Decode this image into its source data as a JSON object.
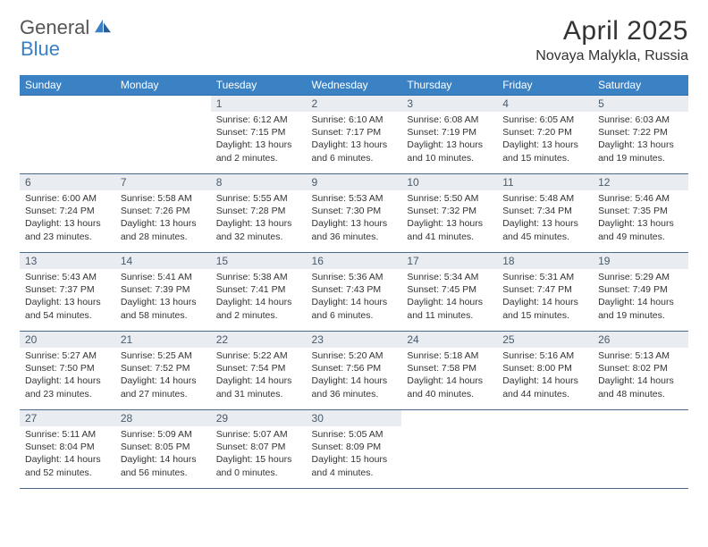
{
  "brand": {
    "general": "General",
    "blue": "Blue"
  },
  "header": {
    "month": "April 2025",
    "location": "Novaya Malykla, Russia"
  },
  "style": {
    "header_bg": "#3b82c4",
    "header_text": "#ffffff",
    "daynum_bg": "#e9edf1",
    "daynum_text": "#4a5a6a",
    "row_border": "#4a6a8a",
    "body_text": "#333333",
    "logo_blue": "#3b7fc4",
    "title_fontsize_pt": 22,
    "location_fontsize_pt": 12,
    "dayheader_fontsize_pt": 9,
    "cell_fontsize_pt": 8
  },
  "weekdays": [
    "Sunday",
    "Monday",
    "Tuesday",
    "Wednesday",
    "Thursday",
    "Friday",
    "Saturday"
  ],
  "weeks": [
    [
      {
        "empty": true
      },
      {
        "empty": true
      },
      {
        "day": "1",
        "sunrise": "Sunrise: 6:12 AM",
        "sunset": "Sunset: 7:15 PM",
        "daylight": "Daylight: 13 hours and 2 minutes."
      },
      {
        "day": "2",
        "sunrise": "Sunrise: 6:10 AM",
        "sunset": "Sunset: 7:17 PM",
        "daylight": "Daylight: 13 hours and 6 minutes."
      },
      {
        "day": "3",
        "sunrise": "Sunrise: 6:08 AM",
        "sunset": "Sunset: 7:19 PM",
        "daylight": "Daylight: 13 hours and 10 minutes."
      },
      {
        "day": "4",
        "sunrise": "Sunrise: 6:05 AM",
        "sunset": "Sunset: 7:20 PM",
        "daylight": "Daylight: 13 hours and 15 minutes."
      },
      {
        "day": "5",
        "sunrise": "Sunrise: 6:03 AM",
        "sunset": "Sunset: 7:22 PM",
        "daylight": "Daylight: 13 hours and 19 minutes."
      }
    ],
    [
      {
        "day": "6",
        "sunrise": "Sunrise: 6:00 AM",
        "sunset": "Sunset: 7:24 PM",
        "daylight": "Daylight: 13 hours and 23 minutes."
      },
      {
        "day": "7",
        "sunrise": "Sunrise: 5:58 AM",
        "sunset": "Sunset: 7:26 PM",
        "daylight": "Daylight: 13 hours and 28 minutes."
      },
      {
        "day": "8",
        "sunrise": "Sunrise: 5:55 AM",
        "sunset": "Sunset: 7:28 PM",
        "daylight": "Daylight: 13 hours and 32 minutes."
      },
      {
        "day": "9",
        "sunrise": "Sunrise: 5:53 AM",
        "sunset": "Sunset: 7:30 PM",
        "daylight": "Daylight: 13 hours and 36 minutes."
      },
      {
        "day": "10",
        "sunrise": "Sunrise: 5:50 AM",
        "sunset": "Sunset: 7:32 PM",
        "daylight": "Daylight: 13 hours and 41 minutes."
      },
      {
        "day": "11",
        "sunrise": "Sunrise: 5:48 AM",
        "sunset": "Sunset: 7:34 PM",
        "daylight": "Daylight: 13 hours and 45 minutes."
      },
      {
        "day": "12",
        "sunrise": "Sunrise: 5:46 AM",
        "sunset": "Sunset: 7:35 PM",
        "daylight": "Daylight: 13 hours and 49 minutes."
      }
    ],
    [
      {
        "day": "13",
        "sunrise": "Sunrise: 5:43 AM",
        "sunset": "Sunset: 7:37 PM",
        "daylight": "Daylight: 13 hours and 54 minutes."
      },
      {
        "day": "14",
        "sunrise": "Sunrise: 5:41 AM",
        "sunset": "Sunset: 7:39 PM",
        "daylight": "Daylight: 13 hours and 58 minutes."
      },
      {
        "day": "15",
        "sunrise": "Sunrise: 5:38 AM",
        "sunset": "Sunset: 7:41 PM",
        "daylight": "Daylight: 14 hours and 2 minutes."
      },
      {
        "day": "16",
        "sunrise": "Sunrise: 5:36 AM",
        "sunset": "Sunset: 7:43 PM",
        "daylight": "Daylight: 14 hours and 6 minutes."
      },
      {
        "day": "17",
        "sunrise": "Sunrise: 5:34 AM",
        "sunset": "Sunset: 7:45 PM",
        "daylight": "Daylight: 14 hours and 11 minutes."
      },
      {
        "day": "18",
        "sunrise": "Sunrise: 5:31 AM",
        "sunset": "Sunset: 7:47 PM",
        "daylight": "Daylight: 14 hours and 15 minutes."
      },
      {
        "day": "19",
        "sunrise": "Sunrise: 5:29 AM",
        "sunset": "Sunset: 7:49 PM",
        "daylight": "Daylight: 14 hours and 19 minutes."
      }
    ],
    [
      {
        "day": "20",
        "sunrise": "Sunrise: 5:27 AM",
        "sunset": "Sunset: 7:50 PM",
        "daylight": "Daylight: 14 hours and 23 minutes."
      },
      {
        "day": "21",
        "sunrise": "Sunrise: 5:25 AM",
        "sunset": "Sunset: 7:52 PM",
        "daylight": "Daylight: 14 hours and 27 minutes."
      },
      {
        "day": "22",
        "sunrise": "Sunrise: 5:22 AM",
        "sunset": "Sunset: 7:54 PM",
        "daylight": "Daylight: 14 hours and 31 minutes."
      },
      {
        "day": "23",
        "sunrise": "Sunrise: 5:20 AM",
        "sunset": "Sunset: 7:56 PM",
        "daylight": "Daylight: 14 hours and 36 minutes."
      },
      {
        "day": "24",
        "sunrise": "Sunrise: 5:18 AM",
        "sunset": "Sunset: 7:58 PM",
        "daylight": "Daylight: 14 hours and 40 minutes."
      },
      {
        "day": "25",
        "sunrise": "Sunrise: 5:16 AM",
        "sunset": "Sunset: 8:00 PM",
        "daylight": "Daylight: 14 hours and 44 minutes."
      },
      {
        "day": "26",
        "sunrise": "Sunrise: 5:13 AM",
        "sunset": "Sunset: 8:02 PM",
        "daylight": "Daylight: 14 hours and 48 minutes."
      }
    ],
    [
      {
        "day": "27",
        "sunrise": "Sunrise: 5:11 AM",
        "sunset": "Sunset: 8:04 PM",
        "daylight": "Daylight: 14 hours and 52 minutes."
      },
      {
        "day": "28",
        "sunrise": "Sunrise: 5:09 AM",
        "sunset": "Sunset: 8:05 PM",
        "daylight": "Daylight: 14 hours and 56 minutes."
      },
      {
        "day": "29",
        "sunrise": "Sunrise: 5:07 AM",
        "sunset": "Sunset: 8:07 PM",
        "daylight": "Daylight: 15 hours and 0 minutes."
      },
      {
        "day": "30",
        "sunrise": "Sunrise: 5:05 AM",
        "sunset": "Sunset: 8:09 PM",
        "daylight": "Daylight: 15 hours and 4 minutes."
      },
      {
        "empty": true
      },
      {
        "empty": true
      },
      {
        "empty": true
      }
    ]
  ]
}
